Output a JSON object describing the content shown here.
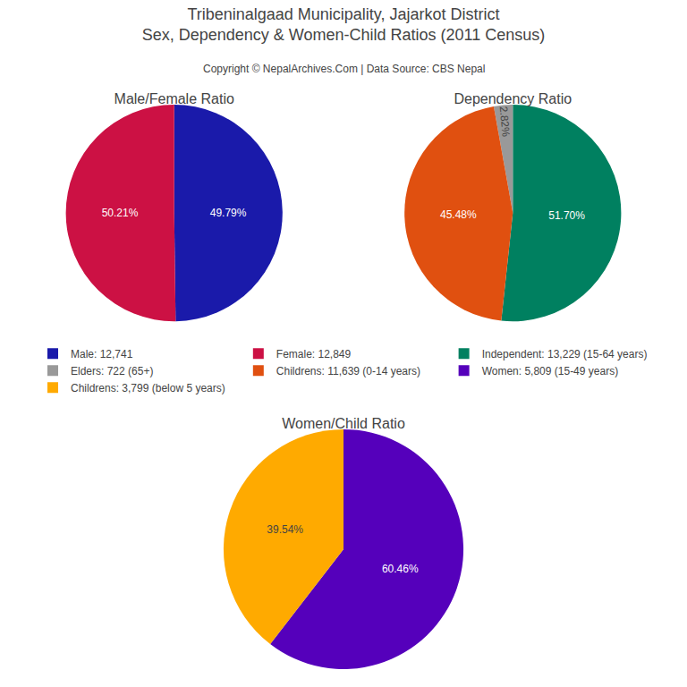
{
  "title": "Tribeninalgaad Municipality, Jajarkot District\nSex, Dependency & Women-Child Ratios (2011 Census)",
  "subtitle": "Copyright © NepalArchives.Com | Data Source: CBS Nepal",
  "chart_data": [
    {
      "type": "pie",
      "title": "Male/Female Ratio",
      "categories": [
        "Male: 12,741",
        "Female: 12,849"
      ],
      "values": [
        49.79,
        50.21
      ],
      "value_labels": [
        "49.79%",
        "50.21%"
      ],
      "colors": [
        "#1a1aaa",
        "#cc1144"
      ],
      "data_labels": true,
      "legend": "center"
    },
    {
      "type": "pie",
      "title": "Dependency Ratio",
      "categories": [
        "Independent: 13,229 (15-64 years)",
        "Elders: 722 (65+)",
        "Childrens: 11,639 (0-14 years)"
      ],
      "values": [
        51.7,
        2.82,
        45.48
      ],
      "value_labels": [
        "51.70%",
        "2.82%",
        "45.48%"
      ],
      "colors": [
        "#008060",
        "#999999",
        "#e05010"
      ],
      "data_labels": true,
      "legend": "center"
    },
    {
      "type": "pie",
      "title": "Women/Child Ratio",
      "categories": [
        "Women: 5,809 (15-49 years)",
        "Childrens: 3,799 (below 5 years)"
      ],
      "values": [
        60.46,
        39.54
      ],
      "value_labels": [
        "60.46%",
        "39.54%"
      ],
      "colors": [
        "#5500bb",
        "#ffaa00"
      ],
      "data_labels": true,
      "legend": "center"
    }
  ]
}
